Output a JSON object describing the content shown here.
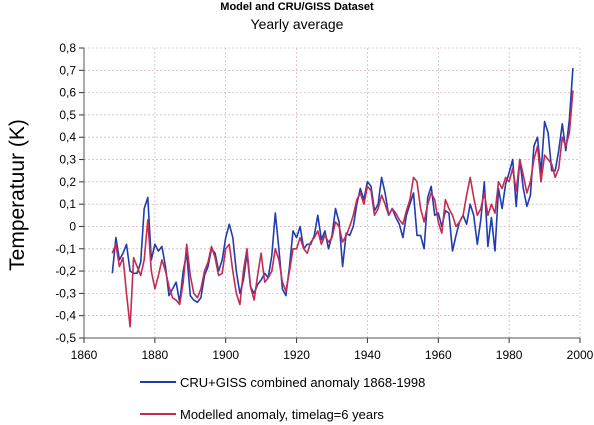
{
  "chart_data": {
    "type": "line",
    "title": "Model and CRU/GISS Dataset",
    "subtitle": "Yearly average",
    "ylabel": "Temperatuur (K)",
    "xlabel": "",
    "xlim": [
      1860,
      2000
    ],
    "ylim": [
      -0.5,
      0.8
    ],
    "xticks": [
      "1860",
      "1880",
      "1900",
      "1920",
      "1940",
      "1960",
      "1980",
      "2000"
    ],
    "yticks": [
      "0,8",
      "0,7",
      "0,6",
      "0,5",
      "0,4",
      "0,3",
      "0,2",
      "0,1",
      "0",
      "-0,1",
      "-0,2",
      "-0,3",
      "-0,4",
      "-0,5"
    ],
    "grid": true,
    "legend_position": "bottom",
    "series": [
      {
        "name": "CRU+GISS combined anomaly 1868-1998",
        "color": "#1f3cb0",
        "x": [
          1868,
          1869,
          1870,
          1871,
          1872,
          1873,
          1874,
          1875,
          1876,
          1877,
          1878,
          1879,
          1880,
          1881,
          1882,
          1883,
          1884,
          1885,
          1886,
          1887,
          1888,
          1889,
          1890,
          1891,
          1892,
          1893,
          1894,
          1895,
          1896,
          1897,
          1898,
          1899,
          1900,
          1901,
          1902,
          1903,
          1904,
          1905,
          1906,
          1907,
          1908,
          1909,
          1910,
          1911,
          1912,
          1913,
          1914,
          1915,
          1916,
          1917,
          1918,
          1919,
          1920,
          1921,
          1922,
          1923,
          1924,
          1925,
          1926,
          1927,
          1928,
          1929,
          1930,
          1931,
          1932,
          1933,
          1934,
          1935,
          1936,
          1937,
          1938,
          1939,
          1940,
          1941,
          1942,
          1943,
          1944,
          1945,
          1946,
          1947,
          1948,
          1949,
          1950,
          1951,
          1952,
          1953,
          1954,
          1955,
          1956,
          1957,
          1958,
          1959,
          1960,
          1961,
          1962,
          1963,
          1964,
          1965,
          1966,
          1967,
          1968,
          1969,
          1970,
          1971,
          1972,
          1973,
          1974,
          1975,
          1976,
          1977,
          1978,
          1979,
          1980,
          1981,
          1982,
          1983,
          1984,
          1985,
          1986,
          1987,
          1988,
          1989,
          1990,
          1991,
          1992,
          1993,
          1994,
          1995,
          1996,
          1997,
          1998
        ],
        "values": [
          -0.21,
          -0.05,
          -0.15,
          -0.12,
          -0.08,
          -0.2,
          -0.21,
          -0.21,
          -0.16,
          0.08,
          0.13,
          -0.15,
          -0.08,
          -0.11,
          -0.09,
          -0.18,
          -0.31,
          -0.28,
          -0.25,
          -0.34,
          -0.2,
          -0.12,
          -0.31,
          -0.33,
          -0.34,
          -0.32,
          -0.22,
          -0.18,
          -0.1,
          -0.12,
          -0.2,
          -0.15,
          -0.05,
          0.01,
          -0.05,
          -0.2,
          -0.3,
          -0.24,
          -0.12,
          -0.27,
          -0.3,
          -0.26,
          -0.24,
          -0.21,
          -0.23,
          -0.13,
          0.06,
          -0.1,
          -0.28,
          -0.31,
          -0.18,
          -0.02,
          -0.05,
          0.0,
          -0.1,
          -0.08,
          -0.08,
          -0.04,
          0.05,
          -0.06,
          -0.02,
          -0.1,
          -0.04,
          0.08,
          0.02,
          -0.18,
          -0.03,
          -0.04,
          0.0,
          0.1,
          0.17,
          0.12,
          0.2,
          0.18,
          0.07,
          0.1,
          0.22,
          0.15,
          0.05,
          0.08,
          0.04,
          0.01,
          -0.05,
          0.05,
          0.1,
          0.15,
          -0.04,
          -0.04,
          -0.1,
          0.13,
          0.18,
          0.05,
          0.06,
          0.0,
          0.07,
          0.06,
          -0.11,
          -0.04,
          0.02,
          0.05,
          0.01,
          0.1,
          0.05,
          -0.08,
          0.03,
          0.2,
          -0.09,
          0.04,
          -0.11,
          0.17,
          0.08,
          0.19,
          0.24,
          0.3,
          0.09,
          0.3,
          0.17,
          0.09,
          0.14,
          0.36,
          0.4,
          0.24,
          0.47,
          0.42,
          0.25,
          0.25,
          0.34,
          0.46,
          0.34,
          0.48,
          0.71
        ]
      },
      {
        "name": "Modelled anomaly, timelag=6 years",
        "color": "#c42b52",
        "x": [
          1868,
          1869,
          1870,
          1871,
          1872,
          1873,
          1874,
          1875,
          1876,
          1877,
          1878,
          1879,
          1880,
          1881,
          1882,
          1883,
          1884,
          1885,
          1886,
          1887,
          1888,
          1889,
          1890,
          1891,
          1892,
          1893,
          1894,
          1895,
          1896,
          1897,
          1898,
          1899,
          1900,
          1901,
          1902,
          1903,
          1904,
          1905,
          1906,
          1907,
          1908,
          1909,
          1910,
          1911,
          1912,
          1913,
          1914,
          1915,
          1916,
          1917,
          1918,
          1919,
          1920,
          1921,
          1922,
          1923,
          1924,
          1925,
          1926,
          1927,
          1928,
          1929,
          1930,
          1931,
          1932,
          1933,
          1934,
          1935,
          1936,
          1937,
          1938,
          1939,
          1940,
          1941,
          1942,
          1943,
          1944,
          1945,
          1946,
          1947,
          1948,
          1949,
          1950,
          1951,
          1952,
          1953,
          1954,
          1955,
          1956,
          1957,
          1958,
          1959,
          1960,
          1961,
          1962,
          1963,
          1964,
          1965,
          1966,
          1967,
          1968,
          1969,
          1970,
          1971,
          1972,
          1973,
          1974,
          1975,
          1976,
          1977,
          1978,
          1979,
          1980,
          1981,
          1982,
          1983,
          1984,
          1985,
          1986,
          1987,
          1988,
          1989,
          1990,
          1991,
          1992,
          1993,
          1994,
          1995,
          1996,
          1997,
          1998
        ],
        "values": [
          -0.12,
          -0.08,
          -0.18,
          -0.14,
          -0.3,
          -0.45,
          -0.14,
          -0.18,
          -0.22,
          -0.15,
          0.03,
          -0.2,
          -0.28,
          -0.22,
          -0.15,
          -0.2,
          -0.27,
          -0.32,
          -0.33,
          -0.35,
          -0.25,
          -0.08,
          -0.22,
          -0.3,
          -0.32,
          -0.28,
          -0.2,
          -0.16,
          -0.09,
          -0.14,
          -0.22,
          -0.21,
          -0.1,
          -0.08,
          -0.2,
          -0.3,
          -0.35,
          -0.2,
          -0.1,
          -0.27,
          -0.33,
          -0.22,
          -0.12,
          -0.25,
          -0.23,
          -0.2,
          -0.1,
          -0.15,
          -0.25,
          -0.29,
          -0.2,
          -0.1,
          -0.1,
          -0.05,
          -0.1,
          -0.12,
          -0.07,
          -0.05,
          -0.02,
          -0.08,
          -0.04,
          -0.07,
          -0.05,
          0.02,
          0.0,
          -0.07,
          -0.04,
          0.0,
          0.05,
          0.12,
          0.15,
          0.1,
          0.18,
          0.16,
          0.05,
          0.08,
          0.14,
          0.1,
          0.05,
          0.08,
          0.06,
          0.03,
          0.01,
          0.07,
          0.12,
          0.22,
          0.2,
          0.08,
          0.02,
          0.1,
          0.15,
          0.12,
          0.02,
          -0.03,
          0.12,
          0.08,
          0.05,
          0.0,
          0.02,
          0.05,
          0.14,
          0.22,
          0.13,
          0.05,
          0.08,
          0.15,
          0.05,
          0.1,
          0.06,
          0.2,
          0.17,
          0.22,
          0.2,
          0.26,
          0.16,
          0.3,
          0.23,
          0.15,
          0.2,
          0.3,
          0.36,
          0.2,
          0.32,
          0.3,
          0.28,
          0.22,
          0.26,
          0.4,
          0.36,
          0.42,
          0.61
        ]
      }
    ]
  }
}
